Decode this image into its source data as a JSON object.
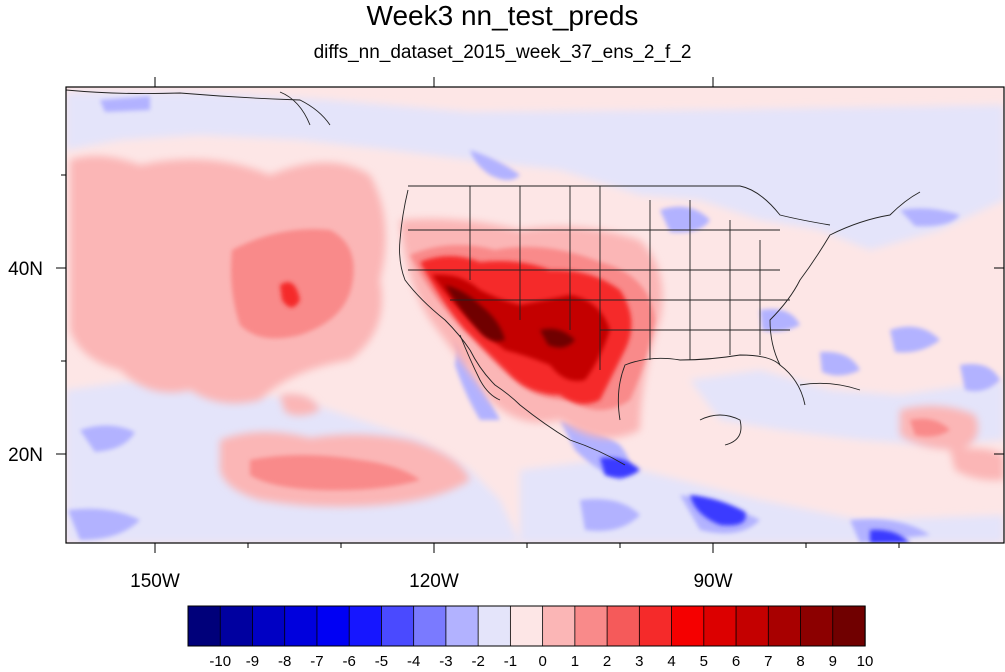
{
  "title": "Week3 nn_test_preds",
  "subtitle": "diffs_nn_dataset_2015_week_37_ens_2_f_2",
  "map": {
    "projection": "cylindrical equidistant",
    "lon_range": [
      -160,
      -62
    ],
    "lat_range": [
      10,
      59
    ],
    "x_ticks": [
      {
        "label": "150W",
        "lon": -150
      },
      {
        "label": "120W",
        "lon": -120
      },
      {
        "label": "90W",
        "lon": -90
      }
    ],
    "y_ticks": [
      {
        "label": "40N",
        "lat": 40
      },
      {
        "label": "20N",
        "lat": 20
      }
    ]
  },
  "colorbar": {
    "labels": [
      "-10",
      "-9",
      "-8",
      "-7",
      "-6",
      "-5",
      "-4",
      "-3",
      "-2",
      "-1",
      "0",
      "1",
      "2",
      "3",
      "4",
      "5",
      "6",
      "7",
      "8",
      "9",
      "10"
    ],
    "colors": [
      "#00007a",
      "#0000a0",
      "#0000c4",
      "#0000dd",
      "#0000f4",
      "#1616ff",
      "#4a4aff",
      "#7a7aff",
      "#b2b2ff",
      "#e4e4fa",
      "#fde6e6",
      "#fbb6b6",
      "#f98a8a",
      "#f55a5a",
      "#f52a2a",
      "#f50000",
      "#dc0000",
      "#c40000",
      "#a80000",
      "#8c0000",
      "#700000"
    ]
  }
}
